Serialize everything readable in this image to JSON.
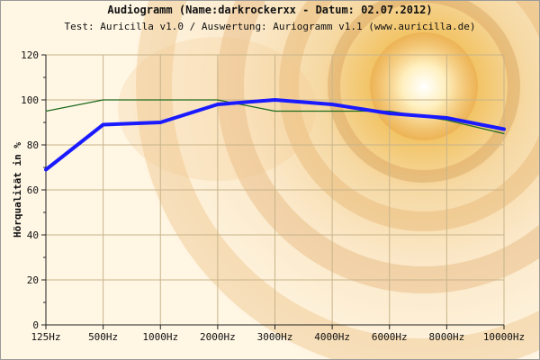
{
  "page": {
    "title": "Audiogramm (Name:darkrockerxx - Datum: 02.07.2012)",
    "subtitle": "Test: Auricilla v1.0 / Auswertung: Auriogramm v1.1 (www.auricilla.de)"
  },
  "colors": {
    "measured": "#1a1aff",
    "reference": "#1d6b1d",
    "grid": "#c8b48a",
    "axis": "#222222"
  },
  "chart_data": {
    "type": "line",
    "title": "Audiogramm (Name:darkrockerxx - Datum: 02.07.2012)",
    "subtitle": "Test: Auricilla v1.0 / Auswertung: Auriogramm v1.1 (www.auricilla.de)",
    "xlabel": "",
    "ylabel": "Hörqualität in %",
    "categories": [
      "125Hz",
      "500Hz",
      "1000Hz",
      "2000Hz",
      "3000Hz",
      "4000Hz",
      "6000Hz",
      "8000Hz",
      "10000Hz"
    ],
    "yticks": [
      0,
      20,
      40,
      60,
      80,
      100,
      120
    ],
    "ylim": [
      0,
      120
    ],
    "grid": true,
    "series": [
      {
        "values": [
          69,
          89,
          90,
          98,
          100,
          98,
          94,
          92,
          87
        ],
        "style": "thick-blue"
      },
      {
        "values": [
          95,
          100,
          100,
          100,
          95,
          95,
          95,
          91,
          85
        ],
        "style": "thin-green"
      }
    ]
  }
}
